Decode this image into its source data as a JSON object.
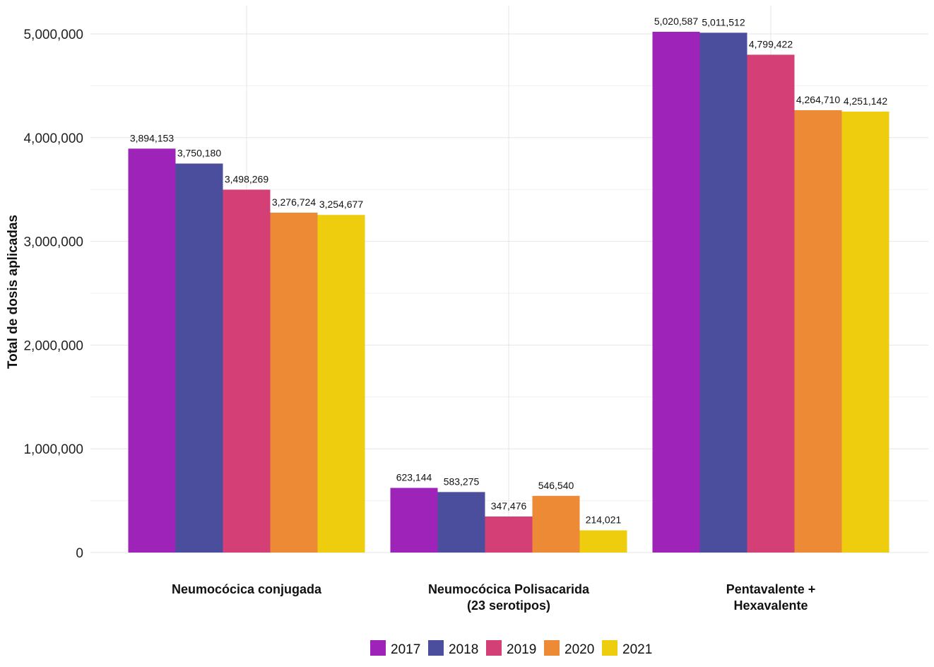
{
  "chart_data": {
    "type": "bar",
    "title": "",
    "xlabel": "",
    "ylabel": "Total de dosis aplicadas",
    "ylim": [
      0,
      5000000
    ],
    "y_ticks": [
      0,
      1000000,
      2000000,
      3000000,
      4000000,
      5000000
    ],
    "y_tick_labels": [
      "0",
      "1,000,000",
      "2,000,000",
      "3,000,000",
      "4,000,000",
      "5,000,000"
    ],
    "grid": true,
    "legend_position": "bottom",
    "categories": [
      [
        "Neumocócica conjugada"
      ],
      [
        "Neumocócica Polisacarida",
        "(23 serotipos)"
      ],
      [
        "Pentavalente +",
        "Hexavalente"
      ]
    ],
    "series": [
      {
        "name": "2017",
        "color": "#9e24b9",
        "values": [
          3894153,
          623144,
          5020587
        ],
        "labels": [
          "3,894,153",
          "623,144",
          "5,020,587"
        ]
      },
      {
        "name": "2018",
        "color": "#4a4e9d",
        "values": [
          3750180,
          583275,
          5011512
        ],
        "labels": [
          "3,750,180",
          "583,275",
          "5,011,512"
        ]
      },
      {
        "name": "2019",
        "color": "#d43f76",
        "values": [
          3498269,
          347476,
          4799422
        ],
        "labels": [
          "3,498,269",
          "347,476",
          "4,799,422"
        ]
      },
      {
        "name": "2020",
        "color": "#ec8a36",
        "values": [
          3276724,
          546540,
          4264710
        ],
        "labels": [
          "3,276,724",
          "546,540",
          "4,264,710"
        ]
      },
      {
        "name": "2021",
        "color": "#edcd0e",
        "values": [
          3254677,
          214021,
          4251142
        ],
        "labels": [
          "3,254,677",
          "214,021",
          "4,251,142"
        ]
      }
    ]
  }
}
